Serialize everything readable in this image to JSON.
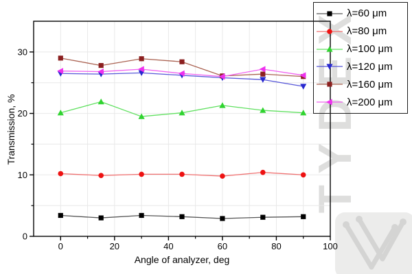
{
  "watermark": {
    "text": "TYDEX"
  },
  "chart_data": {
    "type": "line",
    "title": "",
    "xlabel": "Angle of analyzer, deg",
    "ylabel": "Transmission, %",
    "xlim": [
      -10,
      100
    ],
    "ylim": [
      0,
      35
    ],
    "grid": true,
    "grid_color": "#e8e8e8",
    "x_major_ticks": [
      0,
      20,
      40,
      60,
      80,
      100
    ],
    "x_tick_labels": [
      "0",
      "20",
      "40",
      "60",
      "80",
      "100"
    ],
    "x_minor_ticks": [
      10,
      30,
      50,
      70,
      90
    ],
    "y_major_ticks": [
      0,
      10,
      20,
      30
    ],
    "y_tick_labels": [
      "0",
      "10",
      "20",
      "30"
    ],
    "y_minor_ticks": [
      5,
      15,
      25
    ],
    "x_grid_step": 10,
    "y_grid_step": 5,
    "legend_position": "top-right",
    "x": [
      0,
      15,
      30,
      45,
      60,
      75,
      90
    ],
    "series": [
      {
        "name": "λ=60 μm",
        "marker": "square",
        "color": "#000000",
        "line_color": "#555555",
        "values": [
          3.4,
          3.0,
          3.4,
          3.2,
          2.9,
          3.1,
          3.2
        ]
      },
      {
        "name": "λ=80 μm",
        "marker": "circle",
        "color": "#ee1111",
        "line_color": "#f07070",
        "values": [
          10.2,
          9.9,
          10.1,
          10.1,
          9.8,
          10.4,
          10.0
        ]
      },
      {
        "name": "λ=100 μm",
        "marker": "triangle-up",
        "color": "#2fd32f",
        "line_color": "#5fe05f",
        "values": [
          20.1,
          21.9,
          19.5,
          20.1,
          21.3,
          20.5,
          20.1
        ]
      },
      {
        "name": "λ=120 μm",
        "marker": "triangle-down",
        "color": "#2828cf",
        "line_color": "#5555d8",
        "values": [
          26.5,
          26.4,
          26.6,
          26.2,
          25.8,
          25.5,
          24.4
        ]
      },
      {
        "name": "λ=160 μm",
        "marker": "square",
        "color": "#8b1f1f",
        "line_color": "#a9604f",
        "values": [
          29.0,
          27.8,
          28.9,
          28.4,
          26.1,
          26.4,
          26.0
        ]
      },
      {
        "name": "λ=200 μm",
        "marker": "triangle-left",
        "color": "#ee30ee",
        "line_color": "#f060f0",
        "values": [
          26.9,
          26.8,
          27.2,
          26.5,
          26.0,
          27.2,
          26.2
        ]
      }
    ]
  }
}
